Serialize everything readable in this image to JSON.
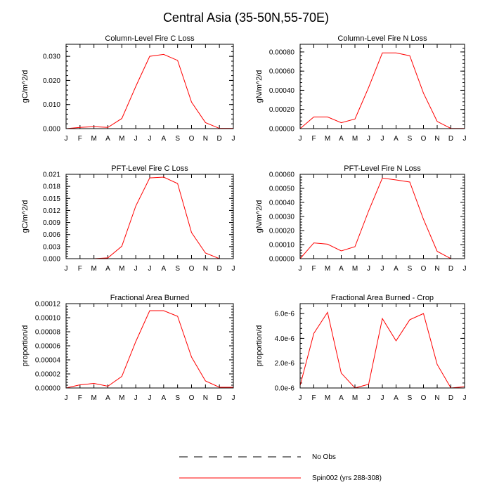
{
  "title": "Central Asia (35-50N,55-70E)",
  "months": [
    "J",
    "F",
    "M",
    "A",
    "M",
    "J",
    "J",
    "A",
    "S",
    "O",
    "N",
    "D",
    "J"
  ],
  "legend": {
    "position": "bottom-center",
    "entries": [
      {
        "label": "No Obs",
        "style": "dashed",
        "color": "#000000"
      },
      {
        "label": "Spin002 (yrs 288-308)",
        "style": "solid",
        "color": "#ff0000"
      }
    ]
  },
  "chart_data": [
    {
      "type": "line",
      "title": "Column-Level Fire C Loss",
      "ylabel": "gC/m^2/d",
      "ylim": [
        0,
        0.035
      ],
      "yticks": [
        "0.000",
        "0.010",
        "0.020",
        "0.030"
      ],
      "ytick_values": [
        0,
        0.01,
        0.02,
        0.03
      ],
      "series": [
        {
          "name": "Spin002 (yrs 288-308)",
          "color": "#ff0000",
          "values": [
            0.0,
            0.0005,
            0.0008,
            0.0005,
            0.0042,
            0.0175,
            0.03,
            0.0308,
            0.0283,
            0.011,
            0.0025,
            0.0001,
            0.0001
          ]
        }
      ]
    },
    {
      "type": "line",
      "title": "Column-Level Fire N Loss",
      "ylabel": "gN/m^2/d",
      "ylim": [
        0,
        0.00088
      ],
      "yticks": [
        "0.00000",
        "0.00020",
        "0.00040",
        "0.00060",
        "0.00080"
      ],
      "ytick_values": [
        0,
        0.0002,
        0.0004,
        0.0006,
        0.0008
      ],
      "series": [
        {
          "name": "Spin002 (yrs 288-308)",
          "color": "#ff0000",
          "values": [
            0.0,
            0.000122,
            0.000122,
            6.2e-05,
            0.0001,
            0.00043,
            0.00079,
            0.00079,
            0.00076,
            0.00037,
            7.5e-05,
            2e-06,
            2e-06
          ]
        }
      ]
    },
    {
      "type": "line",
      "title": "PFT-Level Fire C Loss",
      "ylabel": "gC/m^2/d",
      "ylim": [
        0,
        0.021
      ],
      "yticks": [
        "0.000",
        "0.003",
        "0.006",
        "0.009",
        "0.012",
        "0.015",
        "0.018",
        "0.021"
      ],
      "ytick_values": [
        0,
        0.003,
        0.006,
        0.009,
        0.012,
        0.015,
        0.018,
        0.021
      ],
      "series": [
        {
          "name": "Spin002 (yrs 288-308)",
          "color": "#ff0000",
          "values": [
            0.0,
            0.0,
            0.0,
            0.0002,
            0.0031,
            0.0131,
            0.0201,
            0.0203,
            0.0187,
            0.0065,
            0.0014,
            0.0,
            0.0
          ]
        }
      ]
    },
    {
      "type": "line",
      "title": "PFT-Level Fire N Loss",
      "ylabel": "gN/m^2/d",
      "ylim": [
        0,
        0.0006
      ],
      "yticks": [
        "0.00000",
        "0.00010",
        "0.00020",
        "0.00030",
        "0.00040",
        "0.00050",
        "0.00060"
      ],
      "ytick_values": [
        0,
        0.0001,
        0.0002,
        0.0003,
        0.0004,
        0.0005,
        0.0006
      ],
      "series": [
        {
          "name": "Spin002 (yrs 288-308)",
          "color": "#ff0000",
          "values": [
            0.0,
            0.000112,
            0.000103,
            5.5e-05,
            8.5e-05,
            0.00034,
            0.000573,
            0.00056,
            0.000545,
            0.00028,
            5.2e-05,
            0.0,
            0.0
          ]
        }
      ]
    },
    {
      "type": "line",
      "title": "Fractional Area Burned",
      "ylabel": "proportion/d",
      "ylim": [
        0,
        0.00012
      ],
      "yticks": [
        "0.00000",
        "0.00002",
        "0.00004",
        "0.00006",
        "0.00008",
        "0.00010",
        "0.00012"
      ],
      "ytick_values": [
        0,
        2e-05,
        4e-05,
        6e-05,
        8e-05,
        0.0001,
        0.00012
      ],
      "series": [
        {
          "name": "Spin002 (yrs 288-308)",
          "color": "#ff0000",
          "values": [
            0.0,
            4.5e-06,
            6.5e-06,
            2.5e-06,
            1.65e-05,
            6.6e-05,
            0.00011,
            0.00011,
            0.000102,
            4.4e-05,
            1e-05,
            1e-06,
            1e-06
          ]
        }
      ]
    },
    {
      "type": "line",
      "title": "Fractional Area Burned - Crop",
      "ylabel": "proportion/d",
      "ylim": [
        0,
        6.8e-06
      ],
      "yticks": [
        "0.0e-6",
        "2.0e-6",
        "4.0e-6",
        "6.0e-6"
      ],
      "ytick_values": [
        0,
        2e-06,
        4e-06,
        6e-06
      ],
      "series": [
        {
          "name": "Spin002 (yrs 288-308)",
          "color": "#ff0000",
          "values": [
            2e-07,
            4.4e-06,
            6.1e-06,
            1.2e-06,
            0.0,
            3e-07,
            5.6e-06,
            3.8e-06,
            5.5e-06,
            6e-06,
            1.9e-06,
            0.0,
            1e-07
          ]
        }
      ]
    }
  ]
}
